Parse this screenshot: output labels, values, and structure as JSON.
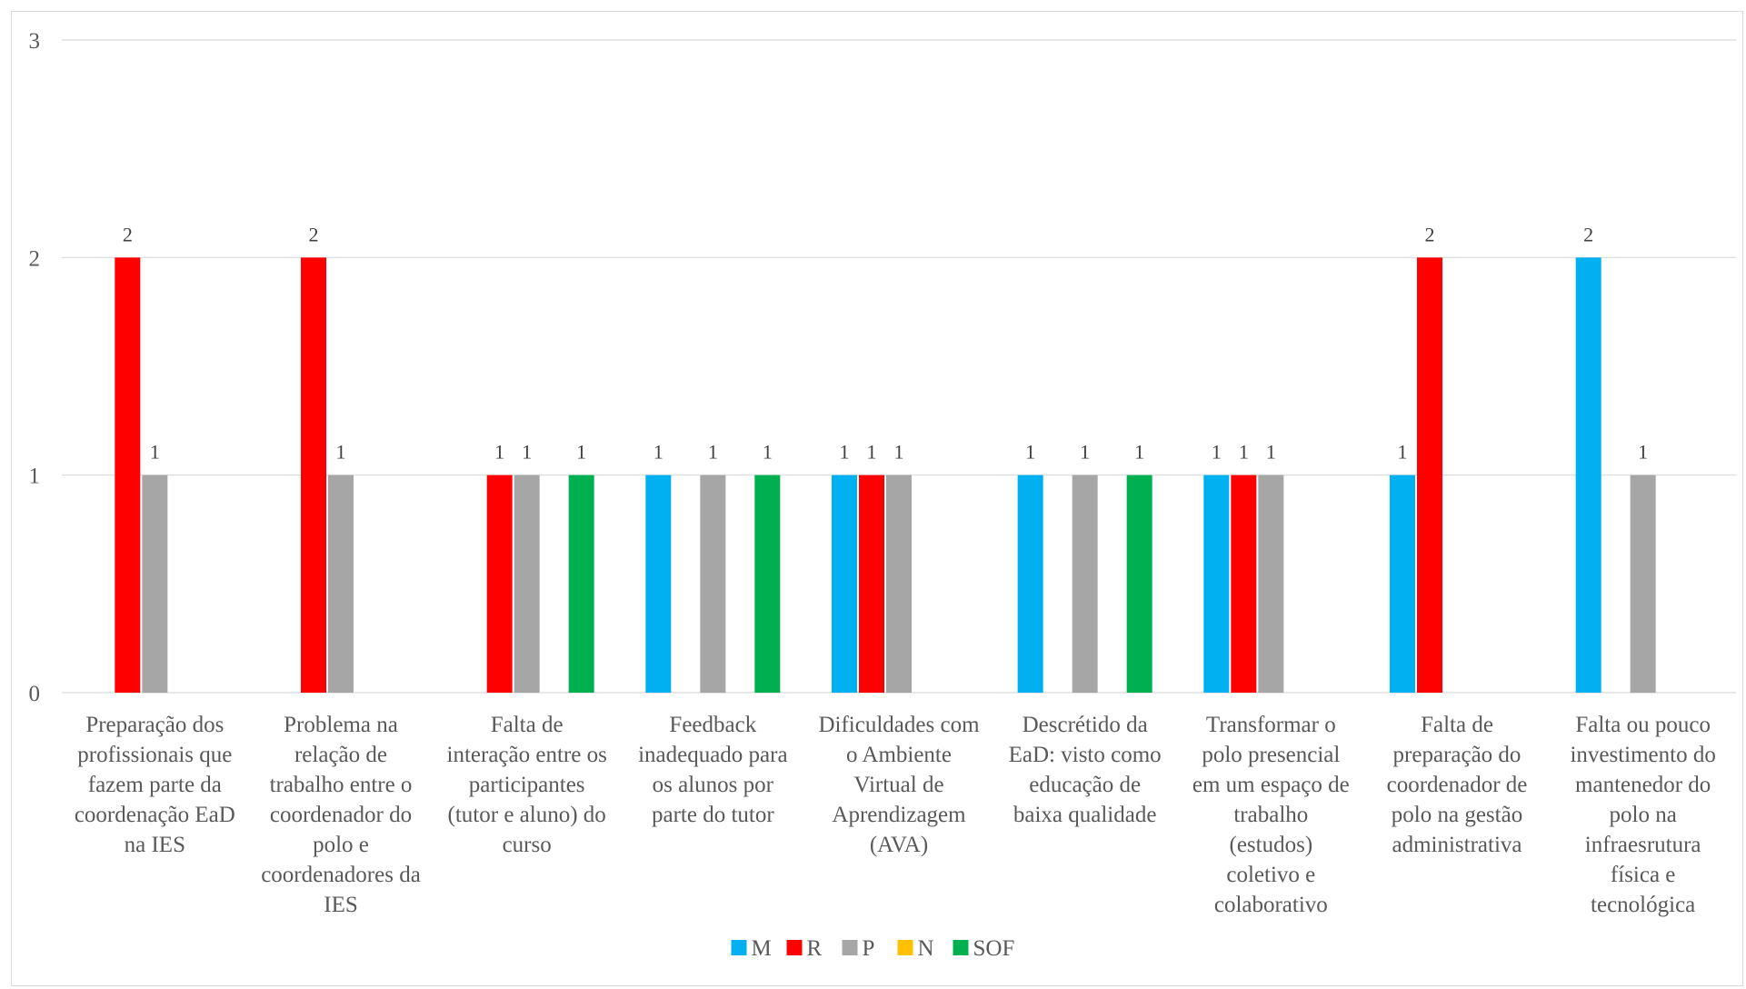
{
  "chart_data": {
    "type": "bar",
    "categories": [
      [
        "Preparação dos",
        "profissionais que",
        "fazem parte da",
        "coordenação EaD",
        "na IES"
      ],
      [
        "Problema na",
        "relação de",
        "trabalho entre o",
        "coordenador do",
        "polo e",
        "coordenadores da",
        "IES"
      ],
      [
        "Falta de",
        "interação entre os",
        "participantes",
        "(tutor e aluno) do",
        "curso"
      ],
      [
        "Feedback",
        "inadequado para",
        "os alunos por",
        "parte do tutor"
      ],
      [
        "Dificuldades com",
        "o Ambiente",
        "Virtual de",
        "Aprendizagem",
        "(AVA)"
      ],
      [
        "Descrétido da",
        "EaD: visto como",
        "educação de",
        "baixa qualidade"
      ],
      [
        "Transformar o",
        "polo presencial",
        "em um espaço de",
        "trabalho",
        "(estudos)",
        "coletivo e",
        "colaborativo"
      ],
      [
        "Falta de",
        "preparação do",
        "coordenador de",
        "polo na gestão",
        "administrativa"
      ],
      [
        "Falta ou pouco",
        "investimento do",
        "mantenedor do",
        "polo na",
        "infraesrutura",
        "física e",
        "tecnológica"
      ]
    ],
    "series": [
      {
        "name": "M",
        "color": "#00B0F0",
        "values": [
          null,
          null,
          null,
          1,
          1,
          1,
          1,
          1,
          2
        ]
      },
      {
        "name": "R",
        "color": "#FF0000",
        "values": [
          2,
          2,
          1,
          null,
          1,
          null,
          1,
          2,
          null
        ]
      },
      {
        "name": "P",
        "color": "#A6A6A6",
        "values": [
          1,
          1,
          1,
          1,
          1,
          1,
          1,
          null,
          1
        ]
      },
      {
        "name": "N",
        "color": "#FFC000",
        "values": [
          null,
          null,
          null,
          null,
          null,
          null,
          null,
          null,
          null
        ]
      },
      {
        "name": "SOF",
        "color": "#00B050",
        "values": [
          null,
          null,
          1,
          1,
          null,
          1,
          null,
          null,
          null
        ]
      }
    ],
    "yticks": [
      "0",
      "1",
      "2",
      "3"
    ],
    "ylim": [
      0,
      3
    ],
    "grid": true,
    "data_labels": true,
    "legend_position": "bottom"
  }
}
